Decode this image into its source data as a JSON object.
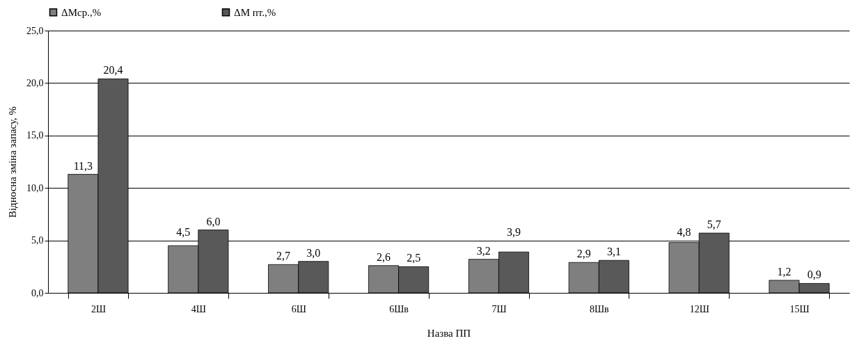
{
  "chart_data": {
    "type": "bar",
    "xlabel": "Назва ПП",
    "ylabel": "Відносна зміна запасу, %",
    "categories": [
      "2Ш",
      "4Ш",
      "6Ш",
      "6Шв",
      "7Ш",
      "8Шв",
      "12Ш",
      "15Ш"
    ],
    "series": [
      {
        "name": "ΔМср.,%",
        "color": "#7f7f7f",
        "values": [
          11.3,
          4.5,
          2.7,
          2.6,
          3.2,
          2.9,
          4.8,
          1.2
        ],
        "value_labels": [
          "11,3",
          "4,5",
          "2,7",
          "2,6",
          "3,2",
          "2,9",
          "4,8",
          "1,2"
        ]
      },
      {
        "name": "ΔМ пт.,%",
        "color": "#595959",
        "values": [
          20.4,
          6.0,
          3.0,
          2.5,
          3.9,
          3.1,
          5.7,
          0.9
        ],
        "value_labels": [
          "20,4",
          "6,0",
          "3,0",
          "2,5",
          "3,9",
          "3,1",
          "5,7",
          "0,9"
        ]
      }
    ],
    "ylim": [
      0,
      25
    ],
    "yticks": [
      {
        "value": 0,
        "label": "0,0"
      },
      {
        "value": 5,
        "label": "5,0"
      },
      {
        "value": 10,
        "label": "10,0"
      },
      {
        "value": 15,
        "label": "15,0"
      },
      {
        "value": 20,
        "label": "20,0"
      },
      {
        "value": 25,
        "label": "25,0"
      }
    ],
    "grid": "y",
    "legend": "top"
  }
}
